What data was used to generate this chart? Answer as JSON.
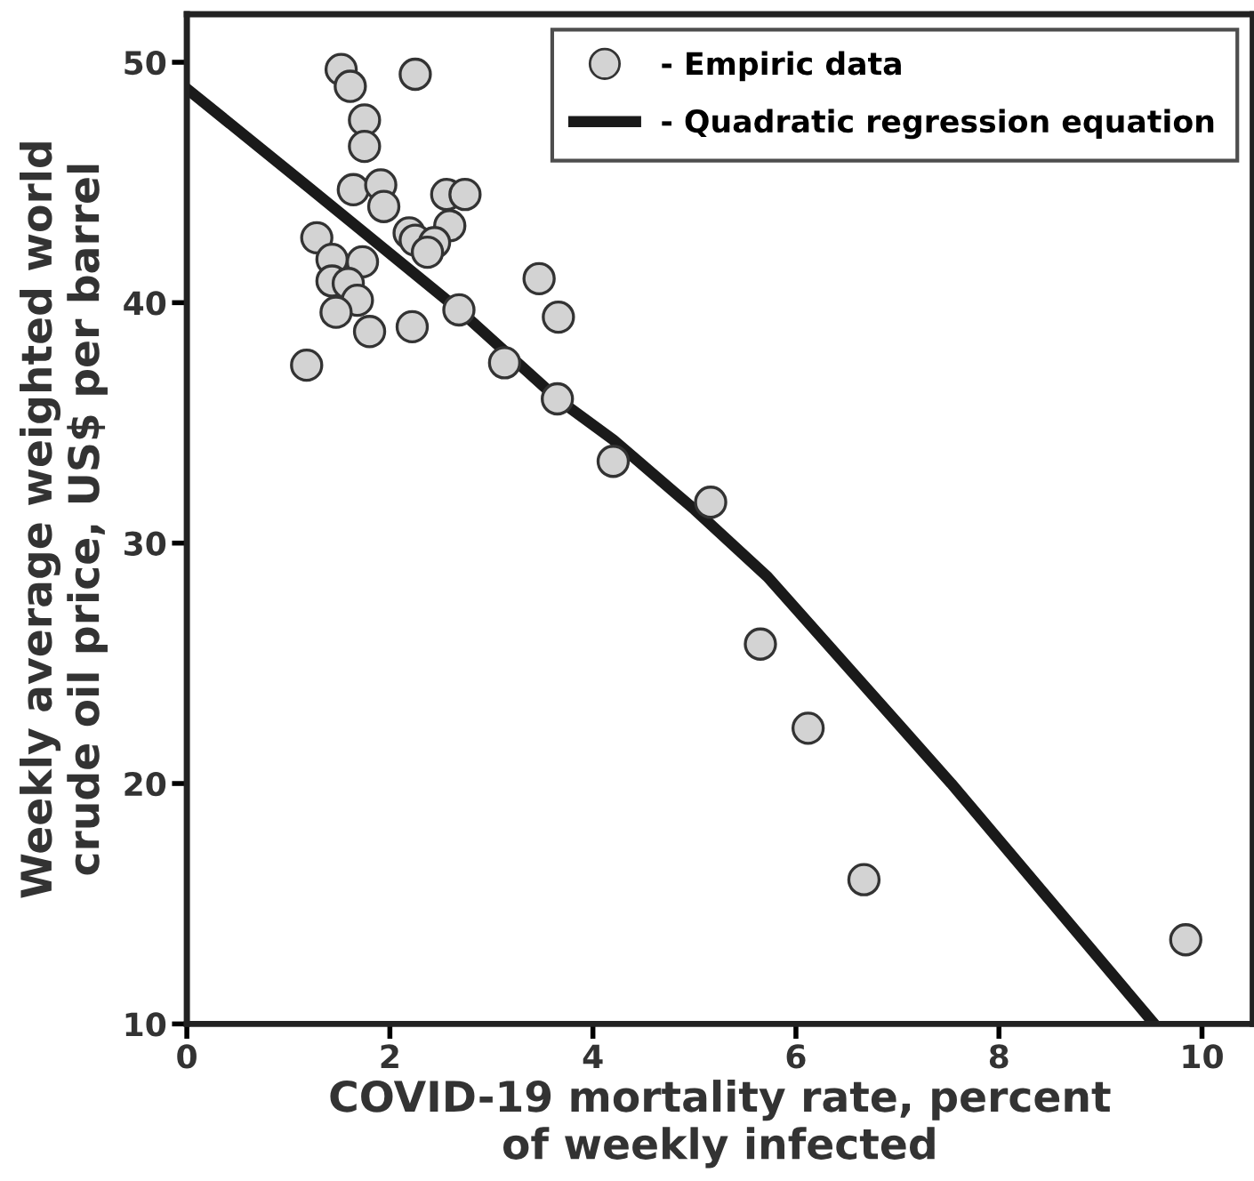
{
  "chart_data": {
    "type": "scatter",
    "xlabel": "COVID-19 mortality rate, percent\nof weekly infected",
    "ylabel": "Weekly average weighted world\ncrude oil price, US$ per barrel",
    "xlim": [
      0,
      10.5
    ],
    "ylim": [
      10,
      52
    ],
    "xticks": [
      0,
      2,
      4,
      6,
      8,
      10
    ],
    "yticks": [
      10,
      20,
      30,
      40,
      50
    ],
    "grid": false,
    "legend": "top right",
    "series": [
      {
        "name": "- Empiric data",
        "marker": "circle",
        "color": "#d3d3d3",
        "x": [
          1.52,
          1.61,
          2.25,
          1.75,
          1.75,
          1.64,
          1.91,
          1.94,
          2.56,
          2.74,
          2.59,
          2.19,
          1.28,
          2.25,
          2.44,
          2.37,
          1.43,
          1.73,
          1.43,
          1.59,
          1.68,
          1.47,
          2.68,
          1.8,
          2.22,
          1.18,
          3.47,
          3.66,
          3.13,
          3.65,
          4.2,
          5.16,
          5.65,
          6.12,
          6.67,
          9.84
        ],
        "values": [
          49.7,
          49.0,
          49.5,
          47.6,
          46.5,
          44.7,
          44.9,
          44.0,
          44.5,
          44.5,
          43.2,
          42.9,
          42.7,
          42.6,
          42.5,
          42.1,
          41.8,
          41.7,
          40.9,
          40.8,
          40.1,
          39.6,
          39.7,
          38.8,
          39.0,
          37.4,
          41.0,
          39.4,
          37.5,
          36.0,
          33.4,
          31.7,
          25.8,
          22.3,
          16.0,
          13.5
        ]
      },
      {
        "name": "- Quadratic regression equation",
        "type": "line",
        "line_style": "solid",
        "color": "#1a1a1a",
        "x": [
          0,
          1.2,
          2.68,
          3.65,
          4.2,
          5.0,
          5.72,
          7.53,
          9.53
        ],
        "values": [
          48.9,
          44.8,
          39.7,
          36.0,
          34.3,
          31.4,
          28.6,
          20.0,
          10.0
        ]
      }
    ]
  }
}
